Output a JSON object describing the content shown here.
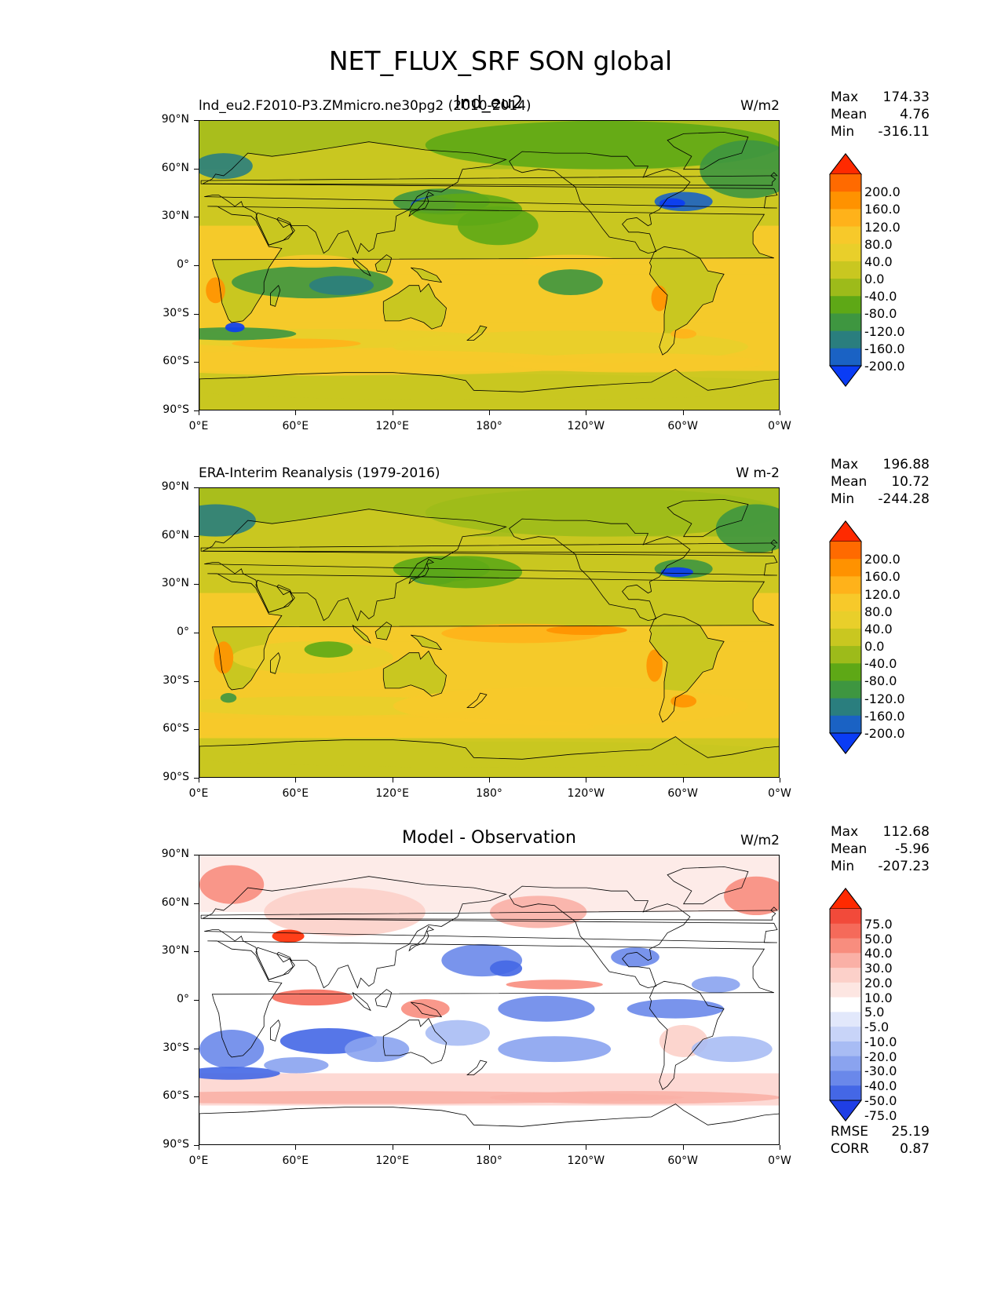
{
  "figure": {
    "title": "NET_FLUX_SRF SON global"
  },
  "panels": [
    {
      "id": "model",
      "title_left": "lnd_eu2.F2010-P3.ZMmicro.ne30pg2 (2010-2014)",
      "title_center": "lnd_eu2",
      "title_right": "W/m2",
      "stats": {
        "max_label": "Max",
        "max": "174.33",
        "mean_label": "Mean",
        "mean": "4.76",
        "min_label": "Min",
        "min": "-316.11"
      },
      "extra_stats": null
    },
    {
      "id": "obs",
      "title_left": "ERA-Interim Reanalysis (1979-2016)",
      "title_center": "",
      "title_right": "W m-2",
      "stats": {
        "max_label": "Max",
        "max": "196.88",
        "mean_label": "Mean",
        "mean": "10.72",
        "min_label": "Min",
        "min": "-244.28"
      },
      "extra_stats": null
    },
    {
      "id": "diff",
      "title_left": "",
      "title_center": "Model - Observation",
      "title_right": "W/m2",
      "stats": {
        "max_label": "Max",
        "max": "112.68",
        "mean_label": "Mean",
        "mean": "-5.96",
        "min_label": "Min",
        "min": "-207.23"
      },
      "extra_stats": {
        "rmse_label": "RMSE",
        "rmse": "25.19",
        "corr_label": "CORR",
        "corr": "0.87"
      }
    }
  ],
  "axes": {
    "lat_ticks": [
      "90°N",
      "60°N",
      "30°N",
      "0°",
      "30°S",
      "60°S",
      "90°S"
    ],
    "lon_ticks": [
      "0°E",
      "60°E",
      "120°E",
      "180°",
      "120°W",
      "60°W",
      "0°W"
    ]
  },
  "colorbars": {
    "field": {
      "labels": [
        "200.0",
        "160.0",
        "120.0",
        "80.0",
        "40.0",
        "0.0",
        "-40.0",
        "-80.0",
        "-120.0",
        "-160.0",
        "-200.0"
      ],
      "colors": [
        "#ff2a00",
        "#ff6a00",
        "#ff9200",
        "#ffb21a",
        "#f7c92a",
        "#e9cf2a",
        "#c9c720",
        "#9dbb1a",
        "#5ea816",
        "#3e9640",
        "#2a7e7e",
        "#1a62c4",
        "#0a3cf5"
      ]
    },
    "diff": {
      "labels": [
        "75.0",
        "50.0",
        "40.0",
        "30.0",
        "20.0",
        "10.0",
        "5.0",
        "-5.0",
        "-10.0",
        "-20.0",
        "-30.0",
        "-40.0",
        "-50.0",
        "-75.0"
      ],
      "colors": [
        "#ff2a00",
        "#f24a3a",
        "#f56a5a",
        "#f88d7e",
        "#fab0a6",
        "#fcd0c9",
        "#fde6e2",
        "#ffffff",
        "#e2e8fb",
        "#c8d4f8",
        "#a8bcf4",
        "#8aa3ef",
        "#6a88ea",
        "#4467e6",
        "#1f3ee5"
      ]
    }
  }
}
